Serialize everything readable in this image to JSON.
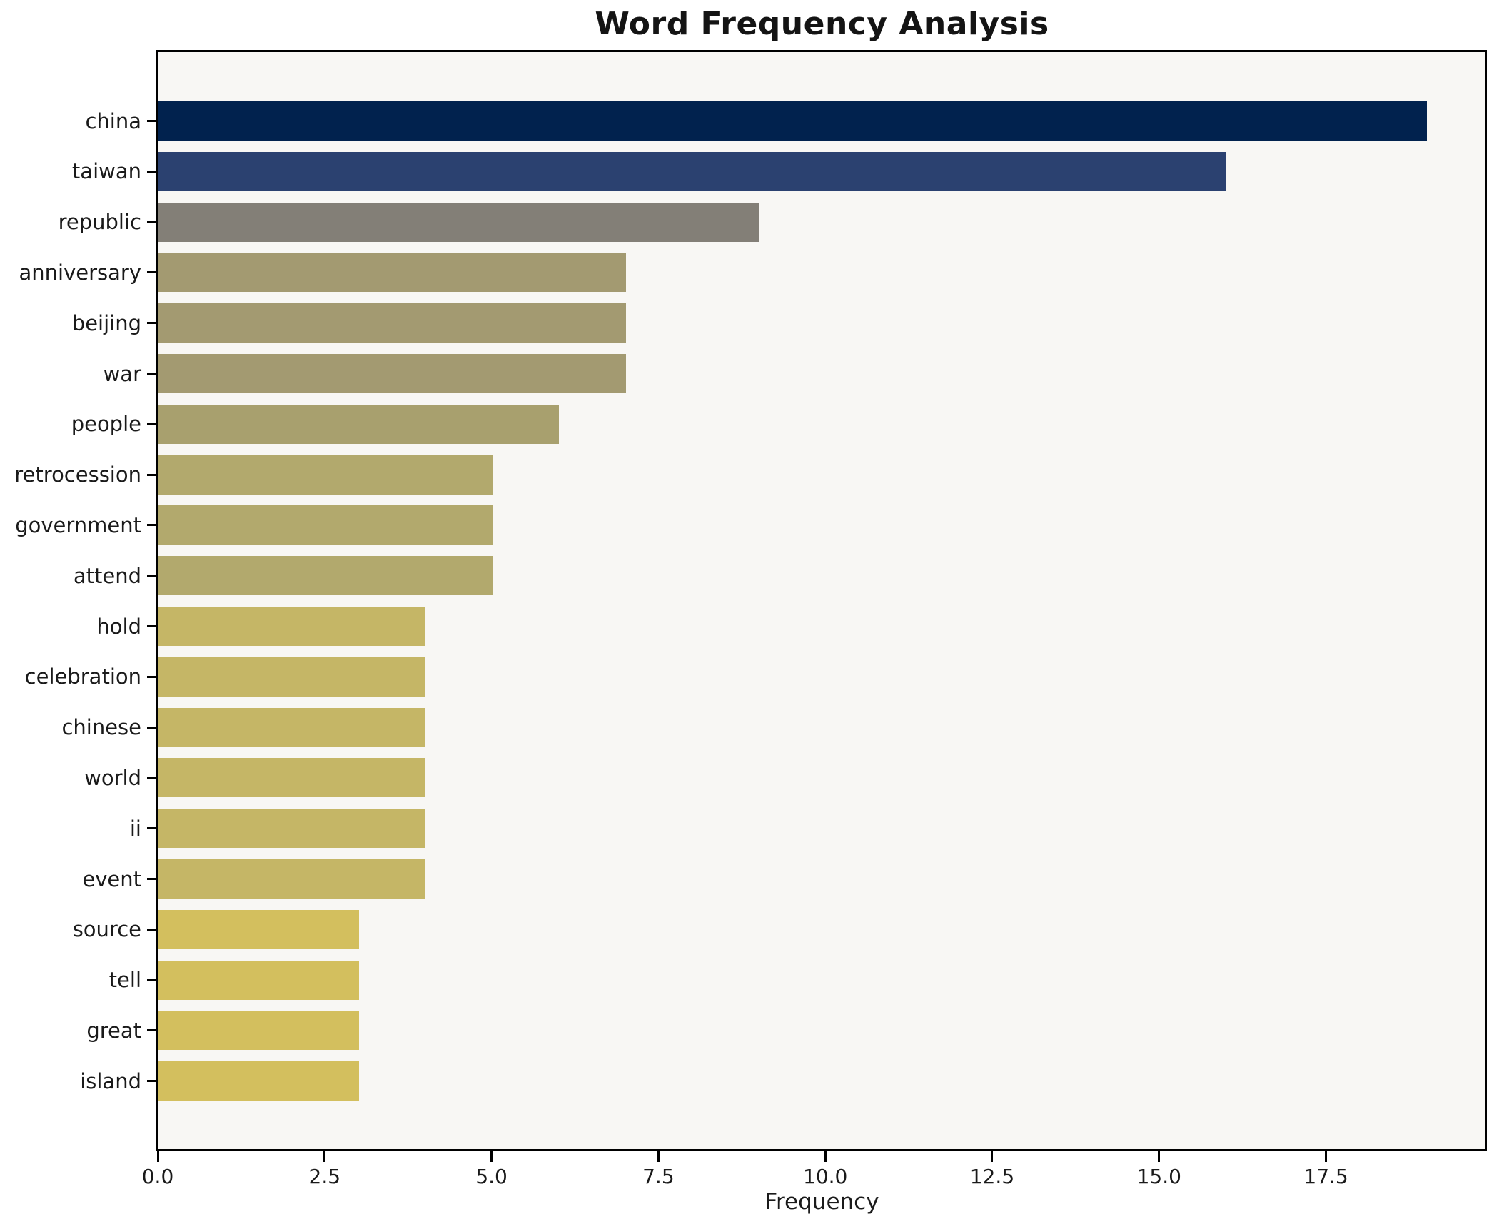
{
  "chart_data": {
    "type": "bar",
    "orientation": "horizontal",
    "title": "Word Frequency Analysis",
    "xlabel": "Frequency",
    "ylabel": "",
    "categories": [
      "china",
      "taiwan",
      "republic",
      "anniversary",
      "beijing",
      "war",
      "people",
      "retrocession",
      "government",
      "attend",
      "hold",
      "celebration",
      "chinese",
      "world",
      "ii",
      "event",
      "source",
      "tell",
      "great",
      "island"
    ],
    "values": [
      19,
      16,
      9,
      7,
      7,
      7,
      6,
      5,
      5,
      5,
      4,
      4,
      4,
      4,
      4,
      4,
      3,
      3,
      3,
      3
    ],
    "bar_colors": [
      "#01224e",
      "#2b4170",
      "#837f77",
      "#a39a71",
      "#a39a71",
      "#a39a71",
      "#a8a06e",
      "#b2a96d",
      "#b2a96d",
      "#b2a96d",
      "#c5b666",
      "#c5b666",
      "#c5b666",
      "#c5b666",
      "#c5b666",
      "#c5b666",
      "#d3bf5e",
      "#d3bf5e",
      "#d3bf5e",
      "#d3bf5e"
    ],
    "xticks": [
      0,
      2.5,
      5,
      7.5,
      10,
      12.5,
      15,
      17.5
    ],
    "xtick_labels": [
      "0.0",
      "2.5",
      "5.0",
      "7.5",
      "10.0",
      "12.5",
      "15.0",
      "17.5"
    ],
    "xlim": [
      0,
      19.9
    ],
    "grid": false,
    "legend": null,
    "colors": {
      "figure_background": "#ffffff",
      "plot_background": "#f8f7f4",
      "spine": "#000000",
      "text": "#1a1a1a"
    }
  }
}
